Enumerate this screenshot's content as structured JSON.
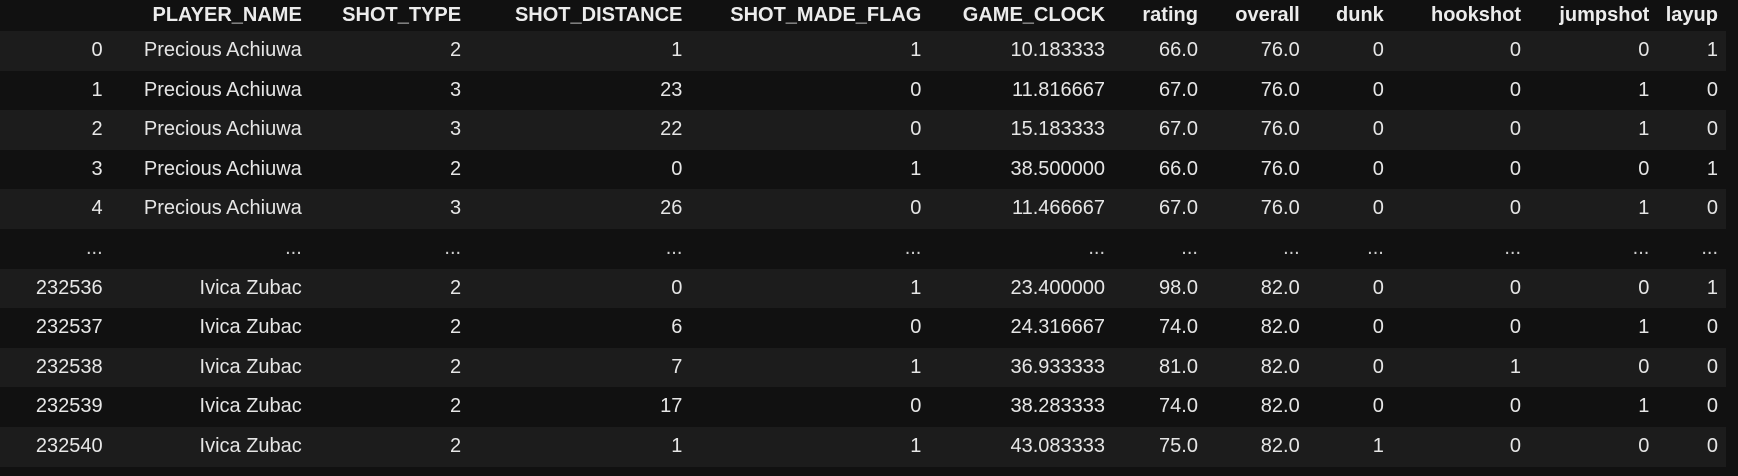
{
  "table": {
    "columns": [
      "",
      "PLAYER_NAME",
      "SHOT_TYPE",
      "SHOT_DISTANCE",
      "SHOT_MADE_FLAG",
      "GAME_CLOCK",
      "rating",
      "overall",
      "dunk",
      "hookshot",
      "jumpshot",
      "layup"
    ],
    "rows": [
      [
        "0",
        "Precious Achiuwa",
        "2",
        "1",
        "1",
        "10.183333",
        "66.0",
        "76.0",
        "0",
        "0",
        "0",
        "1"
      ],
      [
        "1",
        "Precious Achiuwa",
        "3",
        "23",
        "0",
        "11.816667",
        "67.0",
        "76.0",
        "0",
        "0",
        "1",
        "0"
      ],
      [
        "2",
        "Precious Achiuwa",
        "3",
        "22",
        "0",
        "15.183333",
        "67.0",
        "76.0",
        "0",
        "0",
        "1",
        "0"
      ],
      [
        "3",
        "Precious Achiuwa",
        "2",
        "0",
        "1",
        "38.500000",
        "66.0",
        "76.0",
        "0",
        "0",
        "0",
        "1"
      ],
      [
        "4",
        "Precious Achiuwa",
        "3",
        "26",
        "0",
        "11.466667",
        "67.0",
        "76.0",
        "0",
        "0",
        "1",
        "0"
      ],
      [
        "...",
        "...",
        "...",
        "...",
        "...",
        "...",
        "...",
        "...",
        "...",
        "...",
        "...",
        "..."
      ],
      [
        "232536",
        "Ivica Zubac",
        "2",
        "0",
        "1",
        "23.400000",
        "98.0",
        "82.0",
        "0",
        "0",
        "0",
        "1"
      ],
      [
        "232537",
        "Ivica Zubac",
        "2",
        "6",
        "0",
        "24.316667",
        "74.0",
        "82.0",
        "0",
        "0",
        "1",
        "0"
      ],
      [
        "232538",
        "Ivica Zubac",
        "2",
        "7",
        "1",
        "36.933333",
        "81.0",
        "82.0",
        "0",
        "1",
        "0",
        "0"
      ],
      [
        "232539",
        "Ivica Zubac",
        "2",
        "17",
        "0",
        "38.283333",
        "74.0",
        "82.0",
        "0",
        "0",
        "1",
        "0"
      ],
      [
        "232540",
        "Ivica Zubac",
        "2",
        "1",
        "1",
        "43.083333",
        "75.0",
        "82.0",
        "1",
        "0",
        "0",
        "0"
      ]
    ]
  },
  "colors": {
    "background": "#111111",
    "row_stripe": "#1c1c1c",
    "text": "#e6e6e6"
  }
}
